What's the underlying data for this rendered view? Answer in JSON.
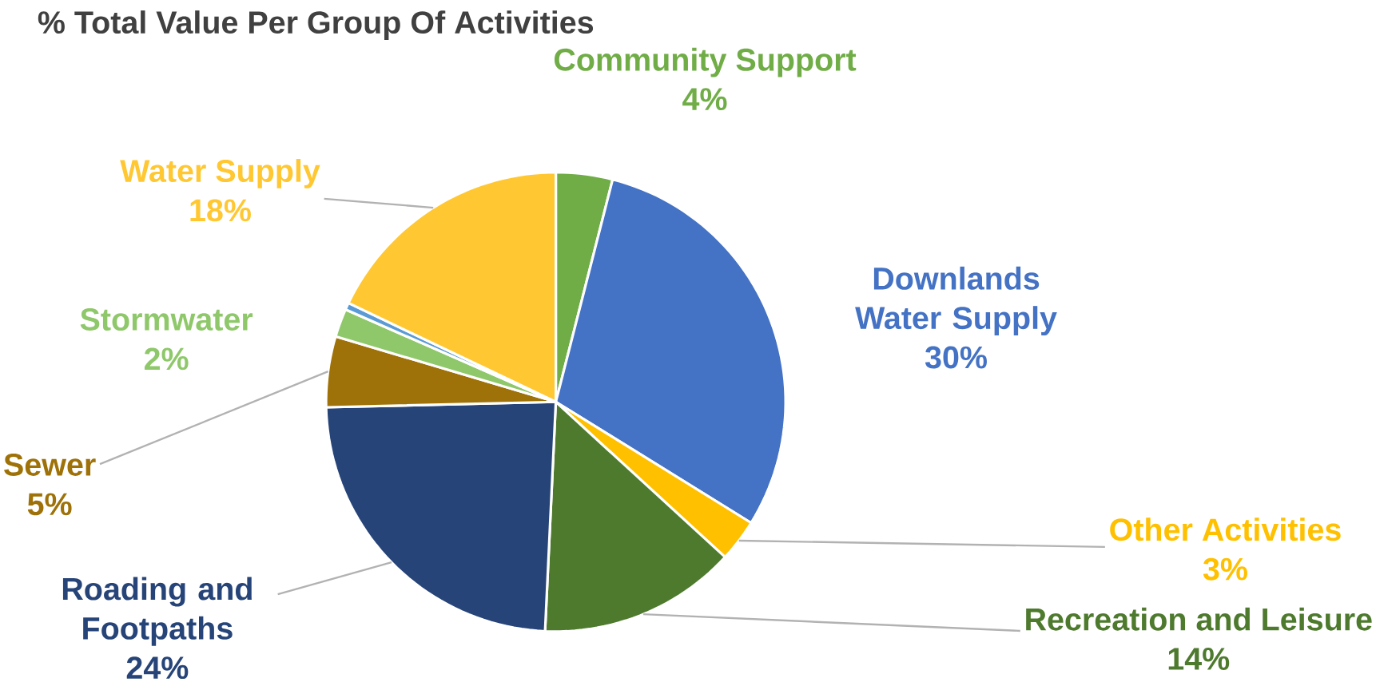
{
  "chart_data": {
    "type": "pie",
    "title": "% Total Value Per Group Of Activities",
    "categories": [
      "Community Support",
      "Downlands Water Supply",
      "Other Activities",
      "Recreation and Leisure",
      "Roading and Footpaths",
      "Sewer",
      "Stormwater",
      null,
      "Water Supply"
    ],
    "values": [
      4,
      30,
      3,
      14,
      24,
      5,
      2,
      0.5,
      18
    ],
    "colors": [
      "#70ad47",
      "#4472c4",
      "#ffc000",
      "#4e7a2e",
      "#264478",
      "#9e7208",
      "#8fc86a",
      "#5b9bd5",
      "#ffc832"
    ],
    "value_labels": [
      "4%",
      "30%",
      "3%",
      "14%",
      "24%",
      "5%",
      "2%",
      null,
      "18%"
    ]
  }
}
